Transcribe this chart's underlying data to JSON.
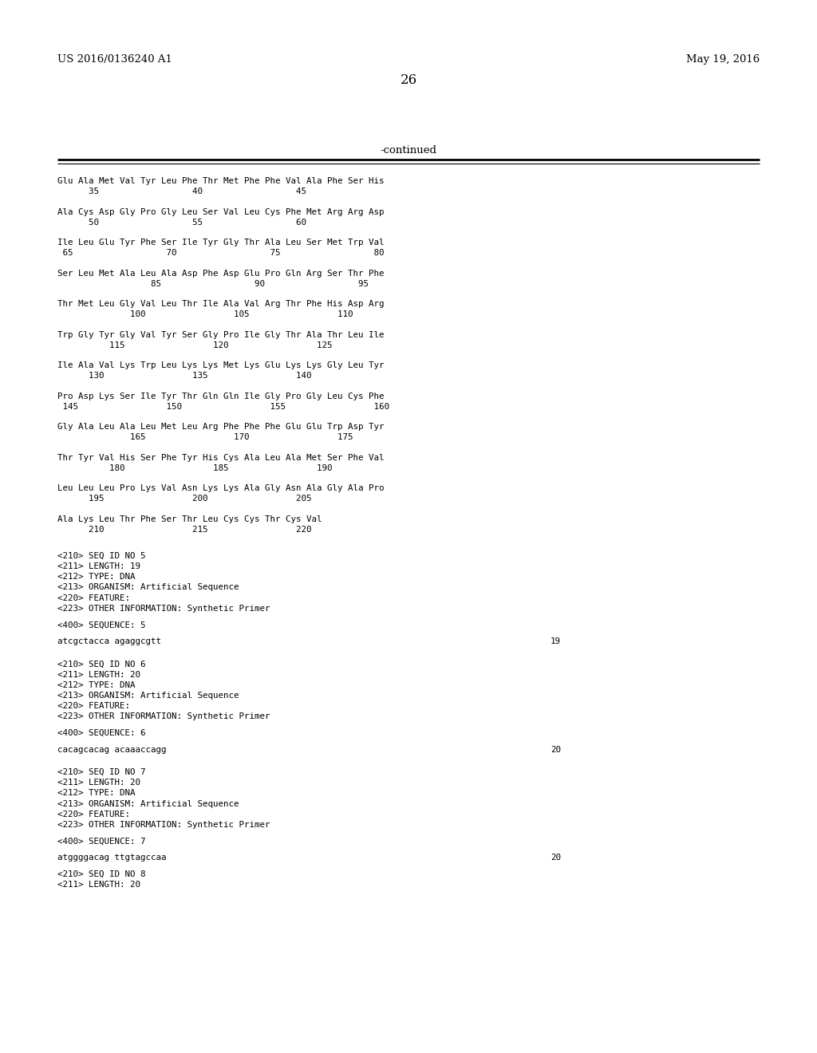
{
  "header_left": "US 2016/0136240 A1",
  "header_right": "May 19, 2016",
  "page_number": "26",
  "continued_text": "-continued",
  "background_color": "#ffffff",
  "text_color": "#000000",
  "header_font_size": 9.5,
  "page_num_font_size": 12.0,
  "mono_font_size": 7.8,
  "content_lines": [
    {
      "type": "seq_line",
      "text": "Glu Ala Met Val Tyr Leu Phe Thr Met Phe Phe Val Ala Phe Ser His"
    },
    {
      "type": "num_line",
      "text": "      35                  40                  45"
    },
    {
      "type": "blank"
    },
    {
      "type": "seq_line",
      "text": "Ala Cys Asp Gly Pro Gly Leu Ser Val Leu Cys Phe Met Arg Arg Asp"
    },
    {
      "type": "num_line",
      "text": "      50                  55                  60"
    },
    {
      "type": "blank"
    },
    {
      "type": "seq_line",
      "text": "Ile Leu Glu Tyr Phe Ser Ile Tyr Gly Thr Ala Leu Ser Met Trp Val"
    },
    {
      "type": "num_line",
      "text": " 65                  70                  75                  80"
    },
    {
      "type": "blank"
    },
    {
      "type": "seq_line",
      "text": "Ser Leu Met Ala Leu Ala Asp Phe Asp Glu Pro Gln Arg Ser Thr Phe"
    },
    {
      "type": "num_line",
      "text": "                  85                  90                  95"
    },
    {
      "type": "blank"
    },
    {
      "type": "seq_line",
      "text": "Thr Met Leu Gly Val Leu Thr Ile Ala Val Arg Thr Phe His Asp Arg"
    },
    {
      "type": "num_line",
      "text": "              100                 105                 110"
    },
    {
      "type": "blank"
    },
    {
      "type": "seq_line",
      "text": "Trp Gly Tyr Gly Val Tyr Ser Gly Pro Ile Gly Thr Ala Thr Leu Ile"
    },
    {
      "type": "num_line",
      "text": "          115                 120                 125"
    },
    {
      "type": "blank"
    },
    {
      "type": "seq_line",
      "text": "Ile Ala Val Lys Trp Leu Lys Lys Met Lys Glu Lys Lys Gly Leu Tyr"
    },
    {
      "type": "num_line",
      "text": "      130                 135                 140"
    },
    {
      "type": "blank"
    },
    {
      "type": "seq_line",
      "text": "Pro Asp Lys Ser Ile Tyr Thr Gln Gln Ile Gly Pro Gly Leu Cys Phe"
    },
    {
      "type": "num_line",
      "text": " 145                 150                 155                 160"
    },
    {
      "type": "blank"
    },
    {
      "type": "seq_line",
      "text": "Gly Ala Leu Ala Leu Met Leu Arg Phe Phe Phe Glu Glu Trp Asp Tyr"
    },
    {
      "type": "num_line",
      "text": "              165                 170                 175"
    },
    {
      "type": "blank"
    },
    {
      "type": "seq_line",
      "text": "Thr Tyr Val His Ser Phe Tyr His Cys Ala Leu Ala Met Ser Phe Val"
    },
    {
      "type": "num_line",
      "text": "          180                 185                 190"
    },
    {
      "type": "blank"
    },
    {
      "type": "seq_line",
      "text": "Leu Leu Leu Pro Lys Val Asn Lys Lys Ala Gly Asn Ala Gly Ala Pro"
    },
    {
      "type": "num_line",
      "text": "      195                 200                 205"
    },
    {
      "type": "blank"
    },
    {
      "type": "seq_line",
      "text": "Ala Lys Leu Thr Phe Ser Thr Leu Cys Cys Thr Cys Val"
    },
    {
      "type": "num_line",
      "text": "      210                 215                 220"
    },
    {
      "type": "blank"
    },
    {
      "type": "blank"
    },
    {
      "type": "meta",
      "text": "<210> SEQ ID NO 5"
    },
    {
      "type": "meta",
      "text": "<211> LENGTH: 19"
    },
    {
      "type": "meta",
      "text": "<212> TYPE: DNA"
    },
    {
      "type": "meta",
      "text": "<213> ORGANISM: Artificial Sequence"
    },
    {
      "type": "meta",
      "text": "<220> FEATURE:"
    },
    {
      "type": "meta",
      "text": "<223> OTHER INFORMATION: Synthetic Primer"
    },
    {
      "type": "blank"
    },
    {
      "type": "meta",
      "text": "<400> SEQUENCE: 5"
    },
    {
      "type": "blank"
    },
    {
      "type": "seq_data",
      "text": "atcgctacca agaggcgtt",
      "length": "19"
    },
    {
      "type": "blank"
    },
    {
      "type": "blank"
    },
    {
      "type": "meta",
      "text": "<210> SEQ ID NO 6"
    },
    {
      "type": "meta",
      "text": "<211> LENGTH: 20"
    },
    {
      "type": "meta",
      "text": "<212> TYPE: DNA"
    },
    {
      "type": "meta",
      "text": "<213> ORGANISM: Artificial Sequence"
    },
    {
      "type": "meta",
      "text": "<220> FEATURE:"
    },
    {
      "type": "meta",
      "text": "<223> OTHER INFORMATION: Synthetic Primer"
    },
    {
      "type": "blank"
    },
    {
      "type": "meta",
      "text": "<400> SEQUENCE: 6"
    },
    {
      "type": "blank"
    },
    {
      "type": "seq_data",
      "text": "cacagcacag acaaaccagg",
      "length": "20"
    },
    {
      "type": "blank"
    },
    {
      "type": "blank"
    },
    {
      "type": "meta",
      "text": "<210> SEQ ID NO 7"
    },
    {
      "type": "meta",
      "text": "<211> LENGTH: 20"
    },
    {
      "type": "meta",
      "text": "<212> TYPE: DNA"
    },
    {
      "type": "meta",
      "text": "<213> ORGANISM: Artificial Sequence"
    },
    {
      "type": "meta",
      "text": "<220> FEATURE:"
    },
    {
      "type": "meta",
      "text": "<223> OTHER INFORMATION: Synthetic Primer"
    },
    {
      "type": "blank"
    },
    {
      "type": "meta",
      "text": "<400> SEQUENCE: 7"
    },
    {
      "type": "blank"
    },
    {
      "type": "seq_data",
      "text": "atggggacag ttgtagccaa",
      "length": "20"
    },
    {
      "type": "blank"
    },
    {
      "type": "meta",
      "text": "<210> SEQ ID NO 8"
    },
    {
      "type": "meta",
      "text": "<211> LENGTH: 20"
    }
  ]
}
